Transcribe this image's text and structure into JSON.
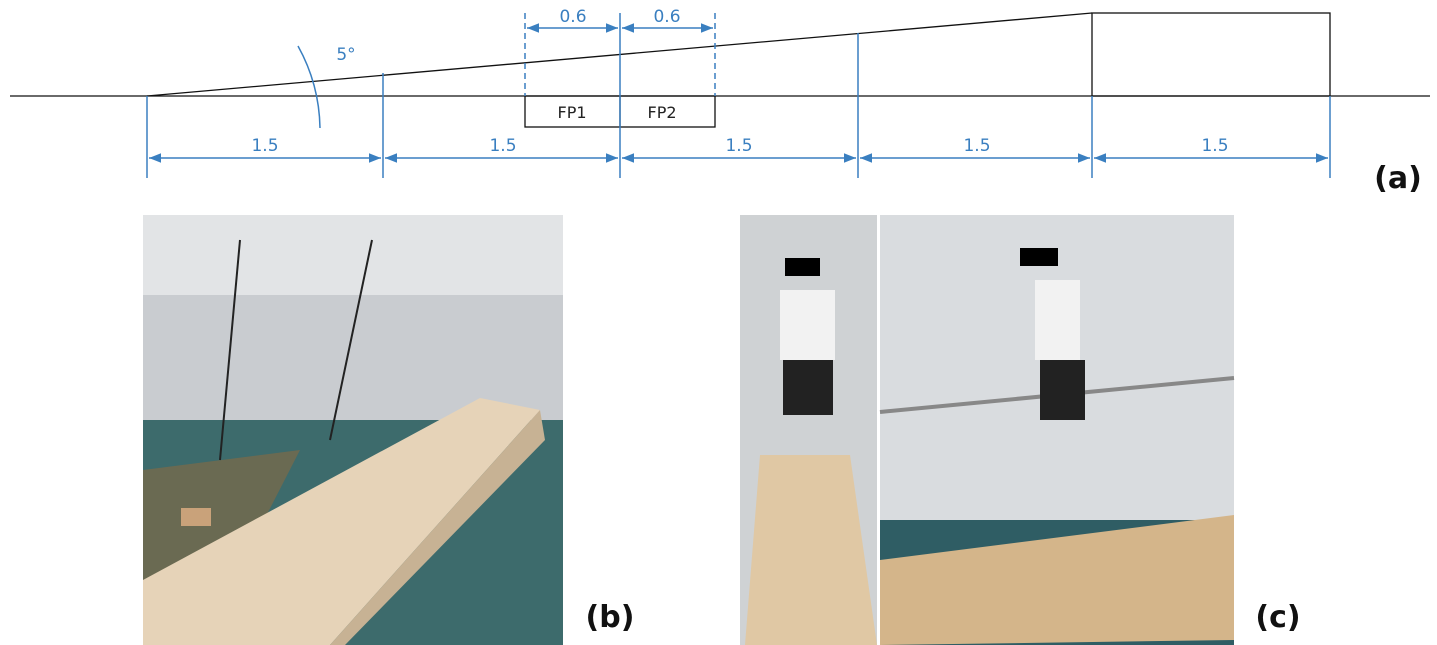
{
  "diagram": {
    "angle_label": "5°",
    "top_dimensions": [
      "0.6",
      "0.6"
    ],
    "plates": [
      "FP1",
      "FP2"
    ],
    "bottom_dimensions": [
      "1.5",
      "1.5",
      "1.5",
      "1.5",
      "1.5"
    ],
    "panel_labels": [
      "(a)",
      "(b)",
      "(c)"
    ]
  }
}
